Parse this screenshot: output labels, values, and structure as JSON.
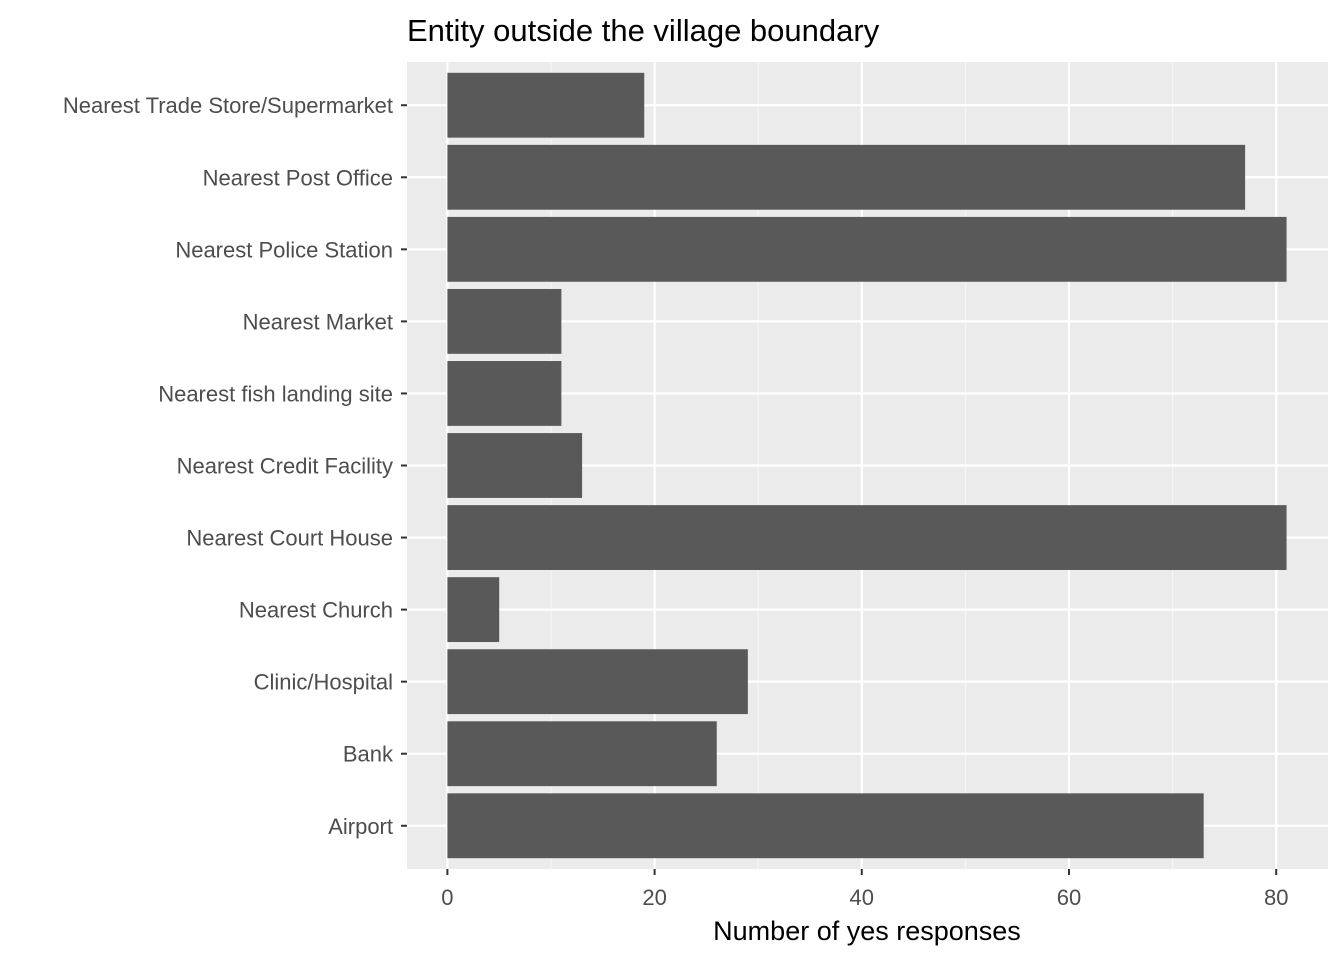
{
  "chart_data": {
    "type": "bar",
    "orientation": "horizontal",
    "title": "Entity outside the village boundary",
    "xlabel": "Number of yes responses",
    "ylabel": "",
    "categories": [
      "Airport",
      "Bank",
      "Clinic/Hospital",
      "Nearest Church",
      "Nearest Court House",
      "Nearest Credit Facility",
      "Nearest fish landing site",
      "Nearest Market",
      "Nearest Police Station",
      "Nearest Post Office",
      "Nearest Trade Store/Supermarket"
    ],
    "values": [
      73,
      26,
      29,
      5,
      81,
      13,
      11,
      11,
      81,
      77,
      19
    ],
    "xlim": [
      -3.9,
      85.0
    ],
    "xticks": [
      0,
      20,
      40,
      60,
      80
    ],
    "xtick_labels": [
      "0",
      "20",
      "40",
      "60",
      "80"
    ],
    "grid": true,
    "legend": "none"
  },
  "colors": {
    "bar": "#595959",
    "panel": "#ebebeb",
    "grid_major": "#ffffff",
    "grid_minor": "#f5f5f5",
    "tick": "#333333"
  }
}
